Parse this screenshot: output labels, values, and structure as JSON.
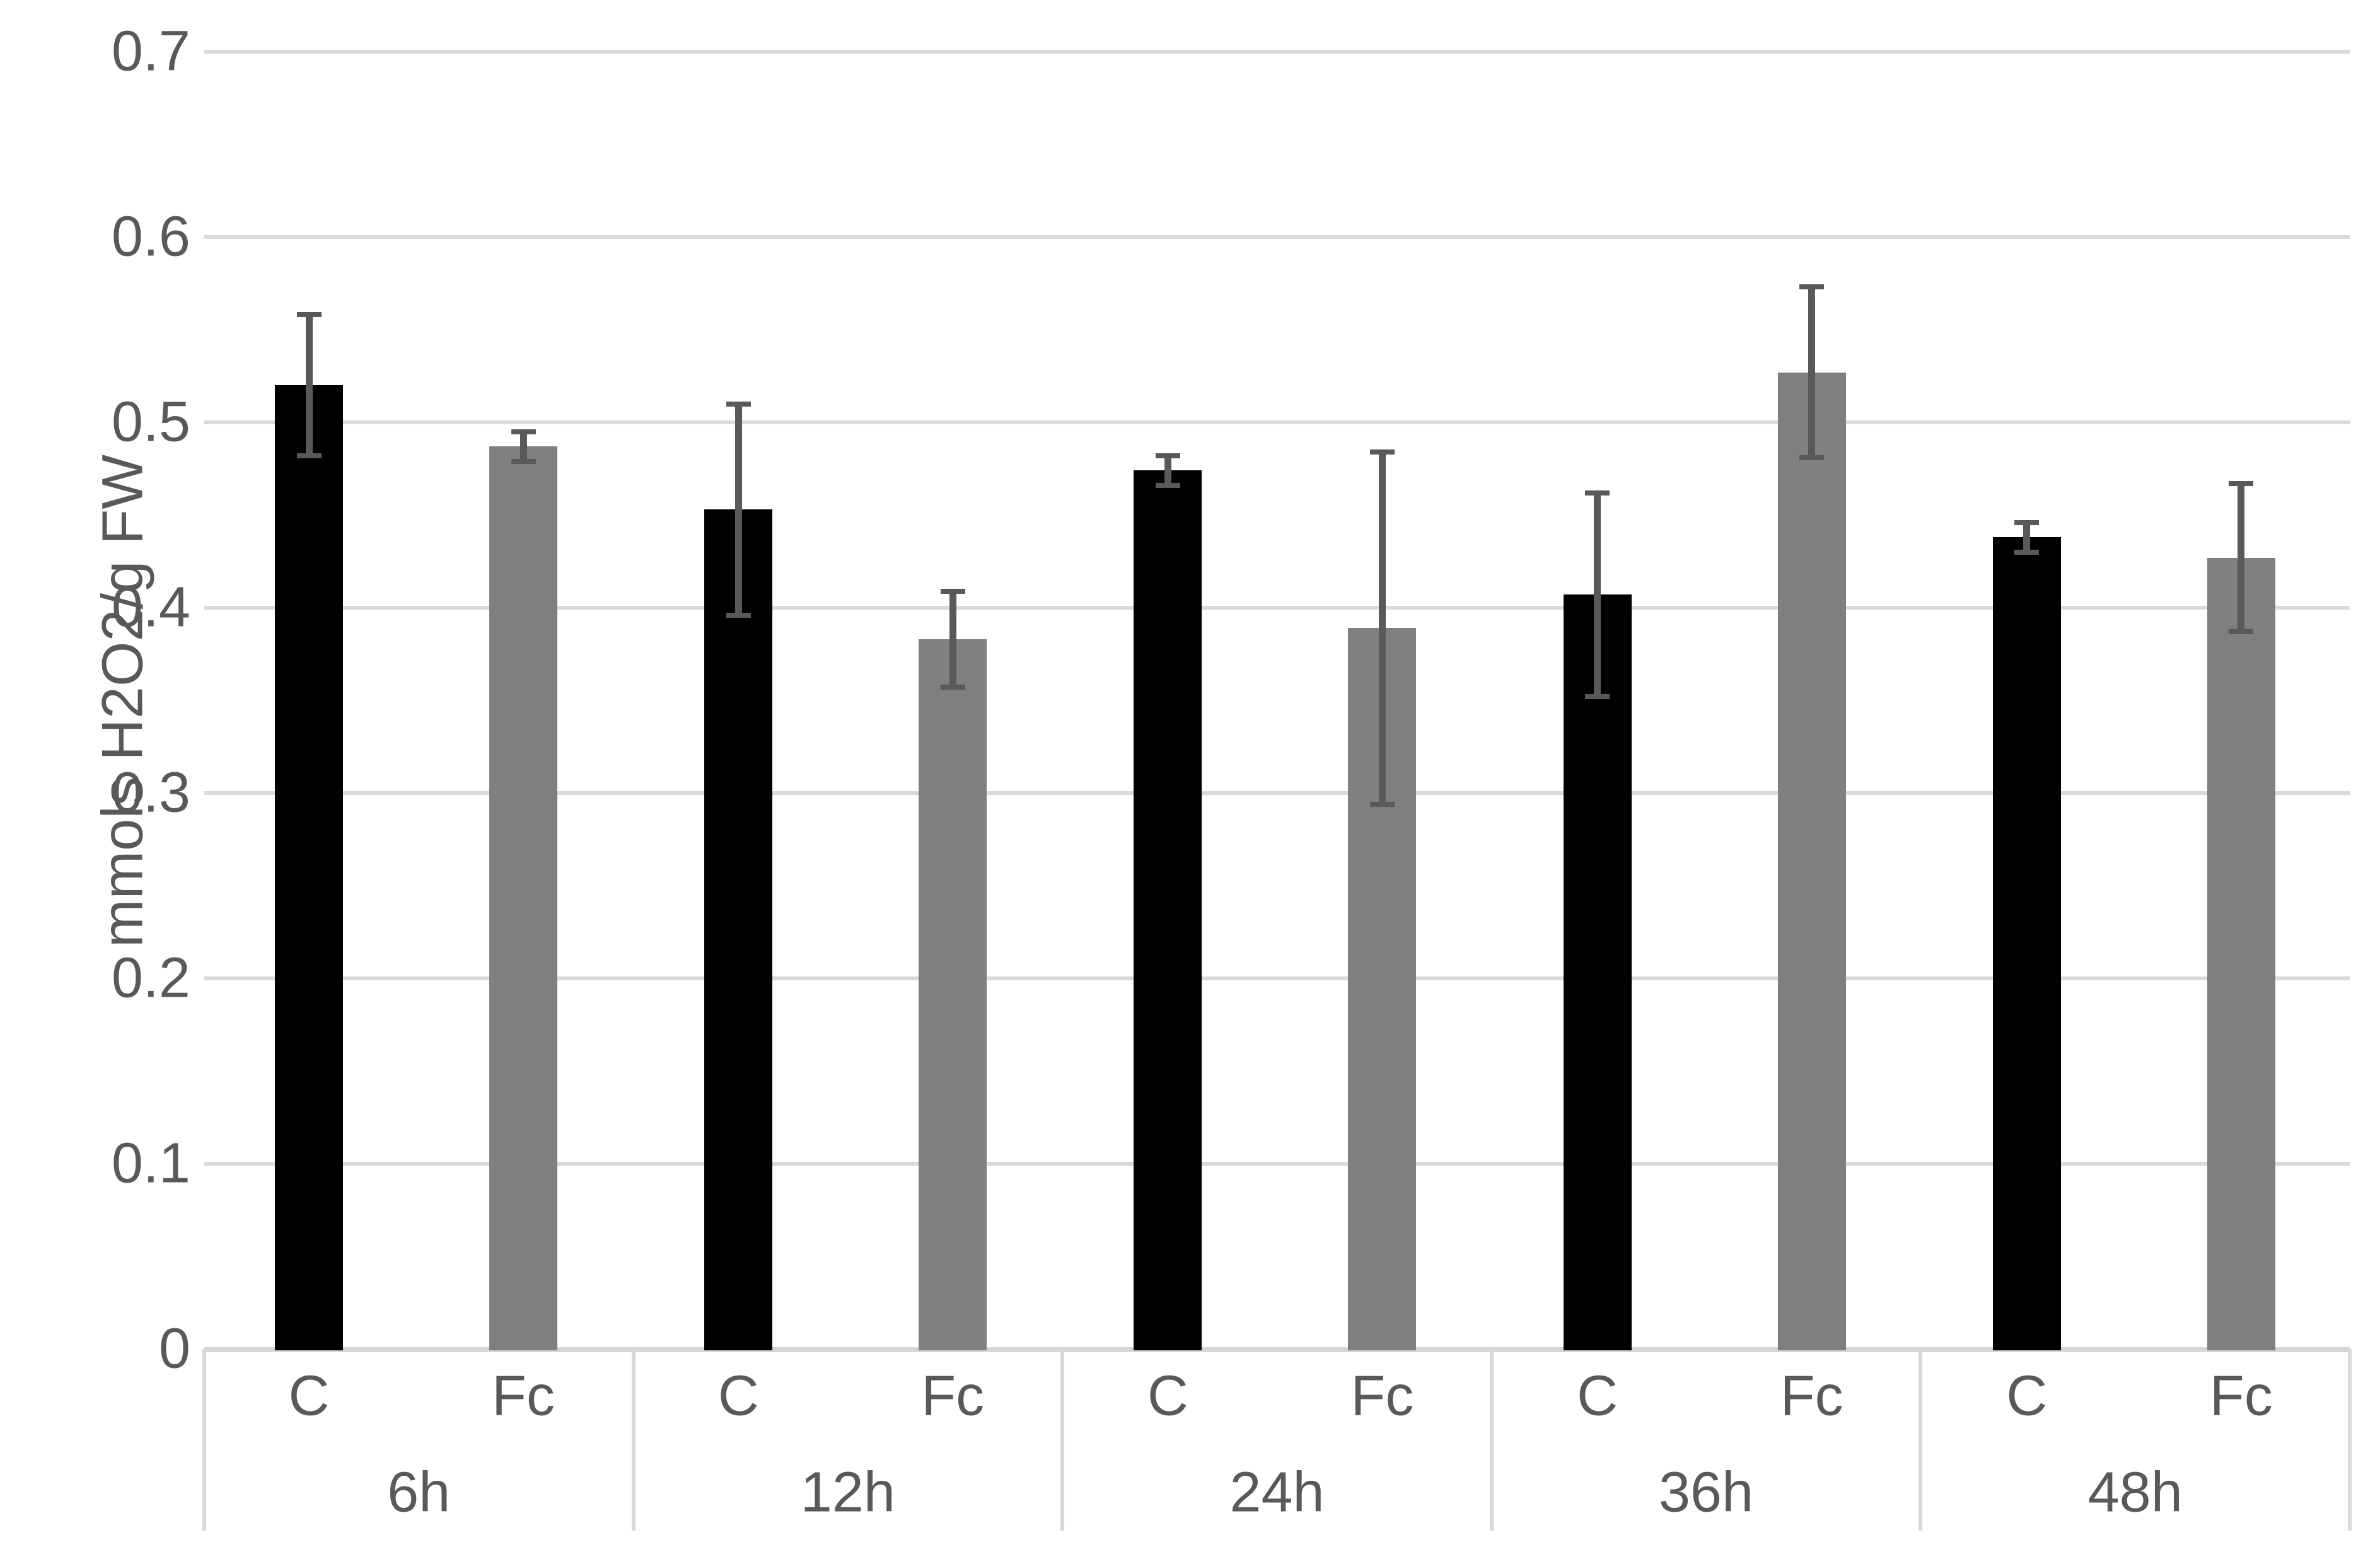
{
  "chart_data": {
    "type": "bar",
    "title": "",
    "ylabel": "mmols H2O2/g FW",
    "xlabel": "",
    "ylim": [
      0,
      0.7
    ],
    "ytick_step": 0.1,
    "ytick_labels": [
      "0",
      "0.1",
      "0.2",
      "0.3",
      "0.4",
      "0.5",
      "0.6",
      "0.7"
    ],
    "grid": true,
    "legend_position": "none",
    "categories": [
      "6h",
      "12h",
      "24h",
      "36h",
      "48h"
    ],
    "series": [
      {
        "name": "C",
        "color": "#000000",
        "values": [
          0.52,
          0.453,
          0.474,
          0.407,
          0.438
        ],
        "errors": [
          0.038,
          0.057,
          0.008,
          0.055,
          0.008
        ]
      },
      {
        "name": "Fc",
        "color": "#7f7f7f",
        "values": [
          0.487,
          0.383,
          0.389,
          0.527,
          0.427
        ],
        "errors": [
          0.008,
          0.026,
          0.095,
          0.046,
          0.04
        ]
      }
    ],
    "error_bar_color": "#595959",
    "gridline_color": "#d9d9d9",
    "label_color": "#595959"
  }
}
